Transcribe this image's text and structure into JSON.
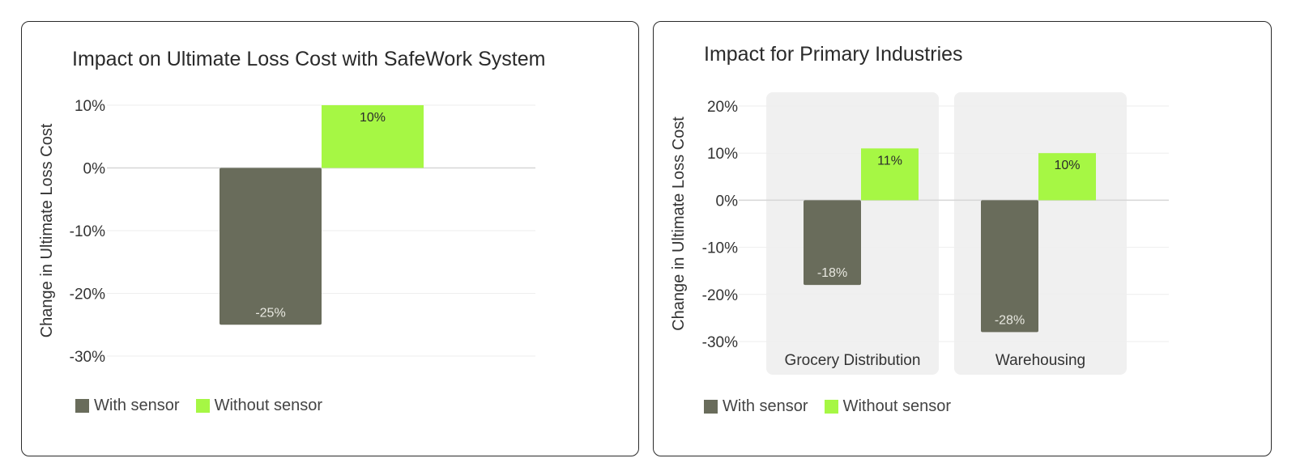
{
  "colors": {
    "with_sensor": "#696c5b",
    "without_sensor": "#a6f744",
    "grid": "#eeeeee",
    "zero_line": "#d6d6d6",
    "group_bg": "#f0f0f0",
    "label_dark": "#2b2b2b",
    "label_light": "#e8e8e0"
  },
  "chart_data": [
    {
      "type": "bar",
      "title": "Impact on Ultimate Loss Cost with SafeWork System",
      "xlabel": "",
      "ylabel": "Change in Ultimate Loss Cost",
      "ylim": [
        -30,
        10
      ],
      "yticks": [
        10,
        0,
        -10,
        -20,
        -30
      ],
      "ytick_labels": [
        "10%",
        "0%",
        "-10%",
        "-20%",
        "-30%"
      ],
      "grid": true,
      "categories": [
        ""
      ],
      "series": [
        {
          "name": "With sensor",
          "values": [
            -25
          ],
          "labels": [
            "-25%"
          ]
        },
        {
          "name": "Without sensor",
          "values": [
            10
          ],
          "labels": [
            "10%"
          ]
        }
      ],
      "legend": {
        "placement": "bottom-left",
        "entries": [
          "With sensor",
          "Without sensor"
        ]
      }
    },
    {
      "type": "bar",
      "title": "Impact for Primary Industries",
      "xlabel": "",
      "ylabel": "Change in Ultimate Loss Cost",
      "ylim": [
        -30,
        20
      ],
      "yticks": [
        20,
        10,
        0,
        -10,
        -20,
        -30
      ],
      "ytick_labels": [
        "20%",
        "10%",
        "0%",
        "-10%",
        "-20%",
        "-30%"
      ],
      "grid": true,
      "categories": [
        "Grocery Distribution",
        "Warehousing"
      ],
      "series": [
        {
          "name": "With sensor",
          "values": [
            -18,
            -28
          ],
          "labels": [
            "-18%",
            "-28%"
          ]
        },
        {
          "name": "Without sensor",
          "values": [
            11,
            10
          ],
          "labels": [
            "11%",
            "10%"
          ]
        }
      ],
      "legend": {
        "placement": "bottom-left",
        "entries": [
          "With sensor",
          "Without sensor"
        ]
      }
    }
  ]
}
